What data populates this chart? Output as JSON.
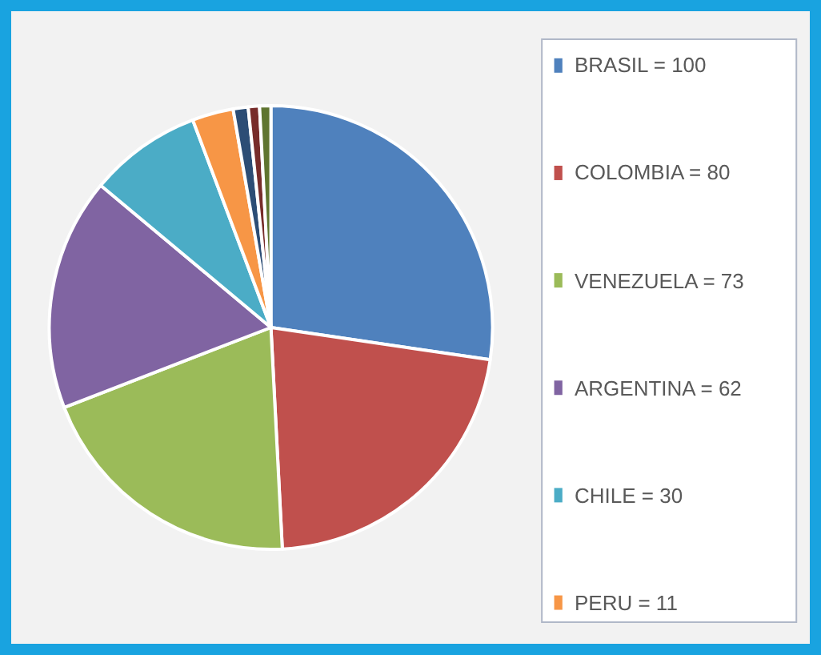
{
  "chart_data": {
    "type": "pie",
    "categories": [
      "BRASIL = 100",
      "COLOMBIA = 80",
      "VENEZUELA = 73",
      "ARGENTINA = 62",
      "CHILE = 30",
      "PERU = 11",
      null,
      null,
      null
    ],
    "values": [
      100,
      80,
      73,
      62,
      30,
      11,
      4,
      3,
      3
    ],
    "colors": [
      "#4f81bd",
      "#c0504d",
      "#9bbb59",
      "#8064a2",
      "#4bacc6",
      "#f79646",
      "#2c4d75",
      "#772c2a",
      "#5f7530"
    ],
    "legend": "right"
  }
}
